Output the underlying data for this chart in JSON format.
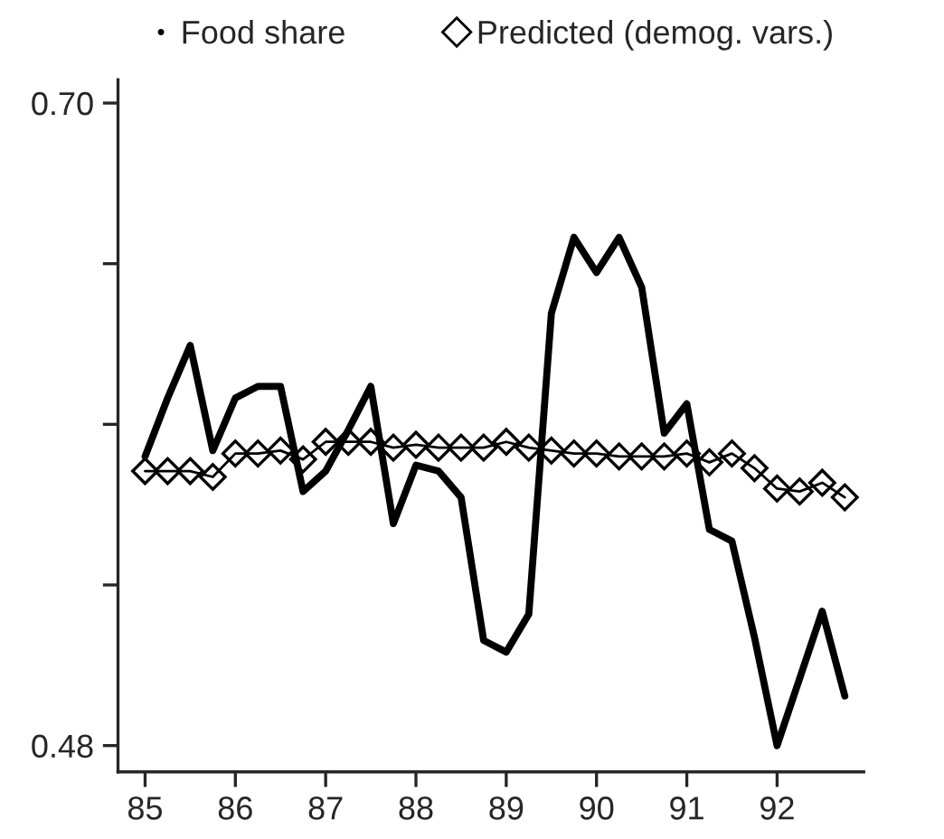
{
  "chart_data": {
    "type": "line",
    "x": [
      85.0,
      85.25,
      85.5,
      85.75,
      86.0,
      86.25,
      86.5,
      86.75,
      87.0,
      87.25,
      87.5,
      87.75,
      88.0,
      88.25,
      88.5,
      88.75,
      89.0,
      89.25,
      89.5,
      89.75,
      90.0,
      90.25,
      90.5,
      90.75,
      91.0,
      91.25,
      91.5,
      91.75,
      92.0,
      92.25,
      92.5,
      92.75
    ],
    "series": [
      {
        "name": "Food share",
        "color": "#000000",
        "marker": "none",
        "line_style": "solid",
        "values": [
          0.579,
          0.599,
          0.617,
          0.581,
          0.599,
          0.603,
          0.603,
          0.567,
          0.574,
          0.588,
          0.603,
          0.556,
          0.576,
          0.574,
          0.565,
          0.516,
          0.512,
          0.525,
          0.628,
          0.654,
          0.642,
          0.654,
          0.637,
          0.587,
          0.597,
          0.554,
          0.55,
          0.517,
          0.48,
          0.503,
          0.526,
          0.497
        ]
      },
      {
        "name": "Predicted (demog. vars.)",
        "color": "#000000",
        "marker": "diamond",
        "line_style": "solid",
        "values": [
          0.574,
          0.574,
          0.574,
          0.572,
          0.58,
          0.58,
          0.581,
          0.578,
          0.584,
          0.584,
          0.584,
          0.582,
          0.583,
          0.582,
          0.582,
          0.582,
          0.584,
          0.582,
          0.581,
          0.58,
          0.58,
          0.579,
          0.579,
          0.579,
          0.58,
          0.577,
          0.58,
          0.575,
          0.568,
          0.567,
          0.57,
          0.565
        ]
      }
    ],
    "xlim": [
      84.7,
      92.96
    ],
    "xticks": [
      85,
      86,
      87,
      88,
      89,
      90,
      91,
      92
    ],
    "ylim": [
      0.471,
      0.708
    ],
    "yticks": [
      {
        "value": 0.7,
        "label": "0.70"
      },
      {
        "value": 0.645,
        "label": null
      },
      {
        "value": 0.59,
        "label": null
      },
      {
        "value": 0.535,
        "label": null
      },
      {
        "value": 0.48,
        "label": "0.48"
      }
    ],
    "grid": false,
    "legend": "top"
  }
}
